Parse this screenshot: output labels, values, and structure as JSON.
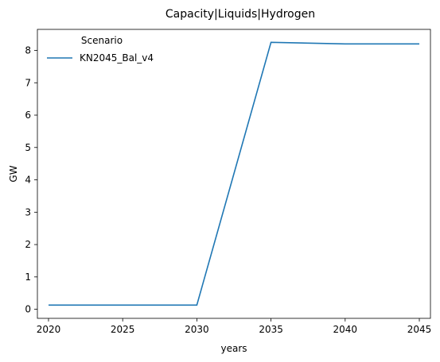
{
  "chart_data": {
    "type": "line",
    "title": "Capacity|Liquids|Hydrogen",
    "xlabel": "years",
    "ylabel": "GW",
    "x": [
      2020,
      2025,
      2030,
      2035,
      2040,
      2045
    ],
    "xticks": [
      "2020",
      "2025",
      "2030",
      "2035",
      "2040",
      "2045"
    ],
    "yticks": [
      "0",
      "1",
      "2",
      "3",
      "4",
      "5",
      "6",
      "7",
      "8"
    ],
    "xlim": [
      2019.25,
      2045.75
    ],
    "ylim": [
      -0.28,
      8.65
    ],
    "grid": false,
    "legend": {
      "title": "Scenario",
      "placement": "upper-left"
    },
    "series": [
      {
        "name": "KN2045_Bal_v4",
        "color": "#1f77b4",
        "values": [
          0.13,
          0.13,
          0.13,
          8.25,
          8.2,
          8.2
        ]
      }
    ]
  }
}
